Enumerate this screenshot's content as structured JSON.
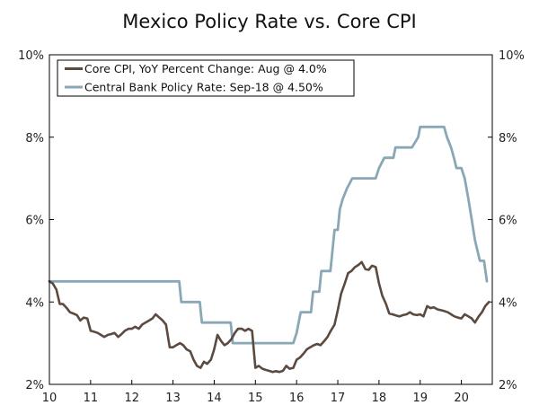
{
  "chart_data": {
    "type": "line",
    "title": "Mexico Policy Rate vs. Core CPI",
    "xlabel": "",
    "ylabel": "",
    "xlim": [
      2010.0,
      2020.75
    ],
    "ylim": [
      2,
      10
    ],
    "x_ticks": [
      {
        "value": 2010,
        "label": "10"
      },
      {
        "value": 2011,
        "label": "11"
      },
      {
        "value": 2012,
        "label": "12"
      },
      {
        "value": 2013,
        "label": "13"
      },
      {
        "value": 2014,
        "label": "14"
      },
      {
        "value": 2015,
        "label": "15"
      },
      {
        "value": 2016,
        "label": "16"
      },
      {
        "value": 2017,
        "label": "17"
      },
      {
        "value": 2018,
        "label": "18"
      },
      {
        "value": 2019,
        "label": "19"
      },
      {
        "value": 2020,
        "label": "20"
      }
    ],
    "y_ticks": [
      {
        "value": 2,
        "label": "2%"
      },
      {
        "value": 4,
        "label": "4%"
      },
      {
        "value": 6,
        "label": "6%"
      },
      {
        "value": 8,
        "label": "8%"
      },
      {
        "value": 10,
        "label": "10%"
      }
    ],
    "legend_position": "top-left",
    "series": [
      {
        "name": "Core CPI, YoY Percent Change: Aug @ 4.0%",
        "color": "#5a4a3f",
        "points": [
          [
            2010.0,
            4.5
          ],
          [
            2010.08,
            4.45
          ],
          [
            2010.17,
            4.3
          ],
          [
            2010.25,
            3.95
          ],
          [
            2010.33,
            3.95
          ],
          [
            2010.42,
            3.85
          ],
          [
            2010.5,
            3.75
          ],
          [
            2010.58,
            3.72
          ],
          [
            2010.67,
            3.68
          ],
          [
            2010.75,
            3.55
          ],
          [
            2010.83,
            3.62
          ],
          [
            2010.92,
            3.6
          ],
          [
            2011.0,
            3.3
          ],
          [
            2011.08,
            3.28
          ],
          [
            2011.17,
            3.25
          ],
          [
            2011.25,
            3.2
          ],
          [
            2011.33,
            3.15
          ],
          [
            2011.42,
            3.2
          ],
          [
            2011.5,
            3.22
          ],
          [
            2011.58,
            3.25
          ],
          [
            2011.67,
            3.15
          ],
          [
            2011.75,
            3.22
          ],
          [
            2011.83,
            3.3
          ],
          [
            2011.92,
            3.35
          ],
          [
            2012.0,
            3.35
          ],
          [
            2012.08,
            3.4
          ],
          [
            2012.17,
            3.35
          ],
          [
            2012.25,
            3.45
          ],
          [
            2012.33,
            3.5
          ],
          [
            2012.42,
            3.55
          ],
          [
            2012.5,
            3.6
          ],
          [
            2012.58,
            3.7
          ],
          [
            2012.67,
            3.62
          ],
          [
            2012.75,
            3.55
          ],
          [
            2012.83,
            3.45
          ],
          [
            2012.92,
            2.9
          ],
          [
            2013.0,
            2.9
          ],
          [
            2013.08,
            2.95
          ],
          [
            2013.17,
            3.0
          ],
          [
            2013.25,
            2.95
          ],
          [
            2013.33,
            2.85
          ],
          [
            2013.42,
            2.8
          ],
          [
            2013.5,
            2.6
          ],
          [
            2013.58,
            2.45
          ],
          [
            2013.67,
            2.4
          ],
          [
            2013.75,
            2.55
          ],
          [
            2013.83,
            2.5
          ],
          [
            2013.92,
            2.6
          ],
          [
            2014.0,
            2.85
          ],
          [
            2014.08,
            3.2
          ],
          [
            2014.17,
            3.05
          ],
          [
            2014.25,
            2.95
          ],
          [
            2014.33,
            3.0
          ],
          [
            2014.42,
            3.1
          ],
          [
            2014.5,
            3.25
          ],
          [
            2014.58,
            3.35
          ],
          [
            2014.67,
            3.35
          ],
          [
            2014.75,
            3.3
          ],
          [
            2014.83,
            3.35
          ],
          [
            2014.92,
            3.3
          ],
          [
            2015.0,
            2.4
          ],
          [
            2015.08,
            2.45
          ],
          [
            2015.17,
            2.38
          ],
          [
            2015.25,
            2.35
          ],
          [
            2015.33,
            2.33
          ],
          [
            2015.42,
            2.3
          ],
          [
            2015.5,
            2.32
          ],
          [
            2015.58,
            2.3
          ],
          [
            2015.67,
            2.33
          ],
          [
            2015.75,
            2.45
          ],
          [
            2015.83,
            2.38
          ],
          [
            2015.92,
            2.4
          ],
          [
            2016.0,
            2.6
          ],
          [
            2016.08,
            2.65
          ],
          [
            2016.17,
            2.75
          ],
          [
            2016.25,
            2.85
          ],
          [
            2016.33,
            2.9
          ],
          [
            2016.42,
            2.95
          ],
          [
            2016.5,
            2.98
          ],
          [
            2016.58,
            2.95
          ],
          [
            2016.67,
            3.05
          ],
          [
            2016.75,
            3.15
          ],
          [
            2016.83,
            3.3
          ],
          [
            2016.92,
            3.45
          ],
          [
            2017.0,
            3.8
          ],
          [
            2017.08,
            4.2
          ],
          [
            2017.17,
            4.45
          ],
          [
            2017.25,
            4.7
          ],
          [
            2017.33,
            4.75
          ],
          [
            2017.42,
            4.85
          ],
          [
            2017.5,
            4.9
          ],
          [
            2017.58,
            4.97
          ],
          [
            2017.67,
            4.8
          ],
          [
            2017.75,
            4.78
          ],
          [
            2017.83,
            4.88
          ],
          [
            2017.92,
            4.85
          ],
          [
            2018.0,
            4.45
          ],
          [
            2018.08,
            4.15
          ],
          [
            2018.17,
            3.95
          ],
          [
            2018.25,
            3.72
          ],
          [
            2018.33,
            3.7
          ],
          [
            2018.42,
            3.67
          ],
          [
            2018.5,
            3.65
          ],
          [
            2018.58,
            3.68
          ],
          [
            2018.67,
            3.7
          ],
          [
            2018.75,
            3.75
          ],
          [
            2018.83,
            3.7
          ],
          [
            2018.92,
            3.68
          ],
          [
            2019.0,
            3.7
          ],
          [
            2019.08,
            3.65
          ],
          [
            2019.17,
            3.9
          ],
          [
            2019.25,
            3.85
          ],
          [
            2019.33,
            3.87
          ],
          [
            2019.42,
            3.82
          ],
          [
            2019.5,
            3.8
          ],
          [
            2019.58,
            3.78
          ],
          [
            2019.67,
            3.75
          ],
          [
            2019.75,
            3.7
          ],
          [
            2019.83,
            3.65
          ],
          [
            2019.92,
            3.62
          ],
          [
            2020.0,
            3.6
          ],
          [
            2020.08,
            3.7
          ],
          [
            2020.17,
            3.65
          ],
          [
            2020.25,
            3.6
          ],
          [
            2020.33,
            3.5
          ],
          [
            2020.42,
            3.65
          ],
          [
            2020.5,
            3.75
          ],
          [
            2020.58,
            3.9
          ],
          [
            2020.67,
            4.0
          ]
        ]
      },
      {
        "name": "Central Bank Policy Rate: Sep-18 @ 4.50%",
        "color": "#8aa7b6",
        "points": [
          [
            2010.0,
            4.5
          ],
          [
            2013.15,
            4.5
          ],
          [
            2013.2,
            4.0
          ],
          [
            2013.65,
            4.0
          ],
          [
            2013.7,
            3.5
          ],
          [
            2014.4,
            3.5
          ],
          [
            2014.45,
            3.0
          ],
          [
            2015.92,
            3.0
          ],
          [
            2016.0,
            3.25
          ],
          [
            2016.1,
            3.75
          ],
          [
            2016.35,
            3.75
          ],
          [
            2016.4,
            4.25
          ],
          [
            2016.55,
            4.25
          ],
          [
            2016.6,
            4.75
          ],
          [
            2016.82,
            4.75
          ],
          [
            2016.87,
            5.25
          ],
          [
            2016.92,
            5.75
          ],
          [
            2017.0,
            5.75
          ],
          [
            2017.05,
            6.25
          ],
          [
            2017.12,
            6.5
          ],
          [
            2017.22,
            6.75
          ],
          [
            2017.35,
            7.0
          ],
          [
            2017.92,
            7.0
          ],
          [
            2018.0,
            7.25
          ],
          [
            2018.13,
            7.5
          ],
          [
            2018.35,
            7.5
          ],
          [
            2018.4,
            7.75
          ],
          [
            2018.8,
            7.75
          ],
          [
            2018.95,
            8.0
          ],
          [
            2019.0,
            8.25
          ],
          [
            2019.58,
            8.25
          ],
          [
            2019.65,
            8.0
          ],
          [
            2019.75,
            7.75
          ],
          [
            2019.82,
            7.5
          ],
          [
            2019.88,
            7.25
          ],
          [
            2020.0,
            7.25
          ],
          [
            2020.08,
            7.0
          ],
          [
            2020.17,
            6.5
          ],
          [
            2020.25,
            6.0
          ],
          [
            2020.33,
            5.5
          ],
          [
            2020.45,
            5.0
          ],
          [
            2020.55,
            5.0
          ],
          [
            2020.62,
            4.5
          ]
        ]
      }
    ]
  }
}
